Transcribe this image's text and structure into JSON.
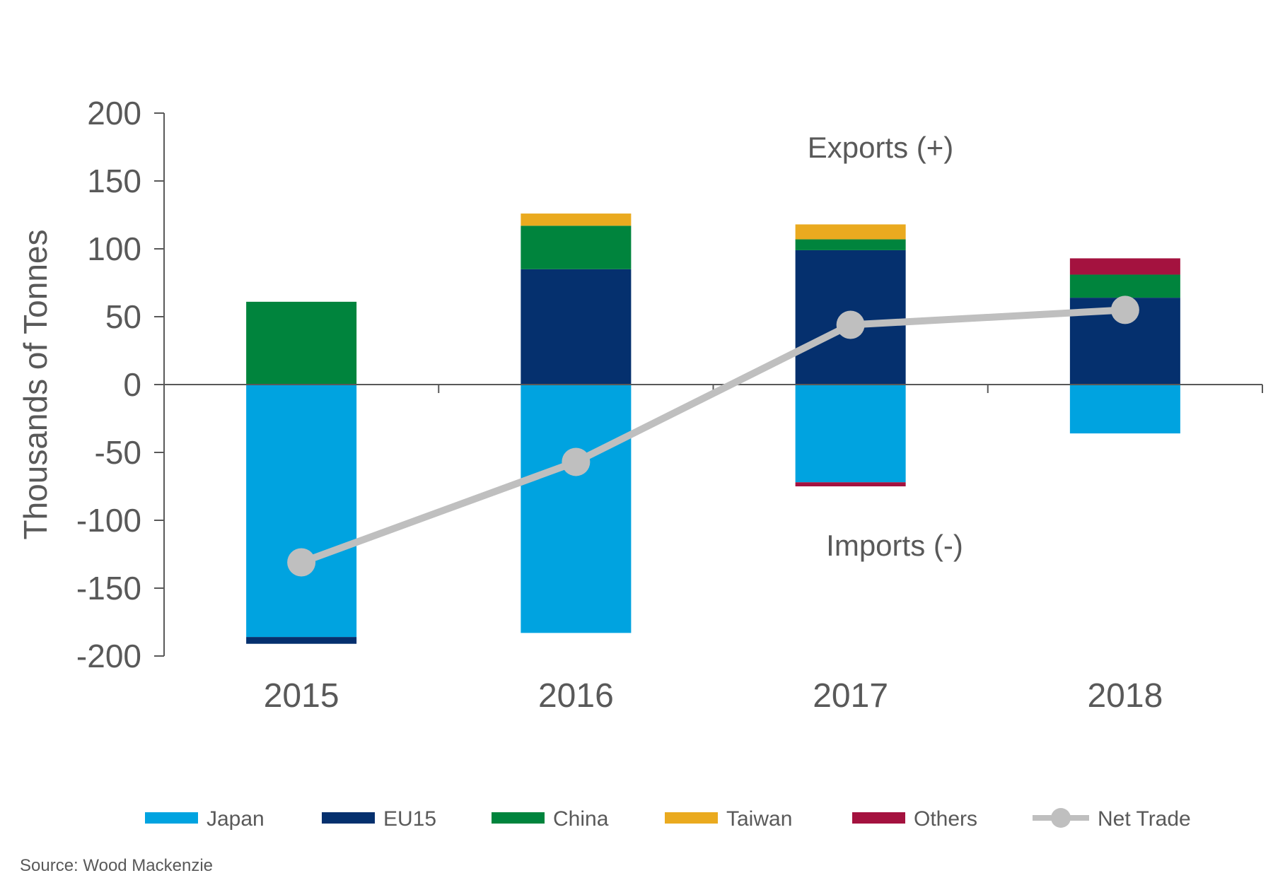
{
  "chart_data": {
    "type": "bar",
    "stacked": true,
    "categories": [
      "2015",
      "2016",
      "2017",
      "2018"
    ],
    "ylabel": "Thousands  of Tonnes",
    "ylim": [
      -200,
      200
    ],
    "yticks": [
      200,
      150,
      100,
      50,
      0,
      -50,
      -100,
      -150,
      -200
    ],
    "series": [
      {
        "name": "Japan",
        "color": "#00A3E0",
        "values": [
          -186,
          -183,
          -72,
          -36
        ]
      },
      {
        "name": "EU15",
        "color": "#05306E",
        "values": [
          -5,
          85,
          99,
          64
        ]
      },
      {
        "name": "China",
        "color": "#00843D",
        "values": [
          61,
          32,
          8,
          17
        ]
      },
      {
        "name": "Taiwan",
        "color": "#EAAA1F",
        "values": [
          0,
          9,
          11,
          0
        ]
      },
      {
        "name": "Others",
        "color": "#A4123F",
        "values": [
          0,
          0,
          -3,
          12
        ]
      }
    ],
    "line_series": {
      "name": "Net Trade",
      "color": "#BFBFBF",
      "values": [
        -131,
        -57,
        44,
        55
      ]
    },
    "annotations": [
      {
        "text": "Exports (+)",
        "position": "upper-right"
      },
      {
        "text": "Imports (-)",
        "position": "lower-right"
      }
    ],
    "legend_position": "bottom",
    "grid": false
  },
  "source": "Source: Wood Mackenzie"
}
